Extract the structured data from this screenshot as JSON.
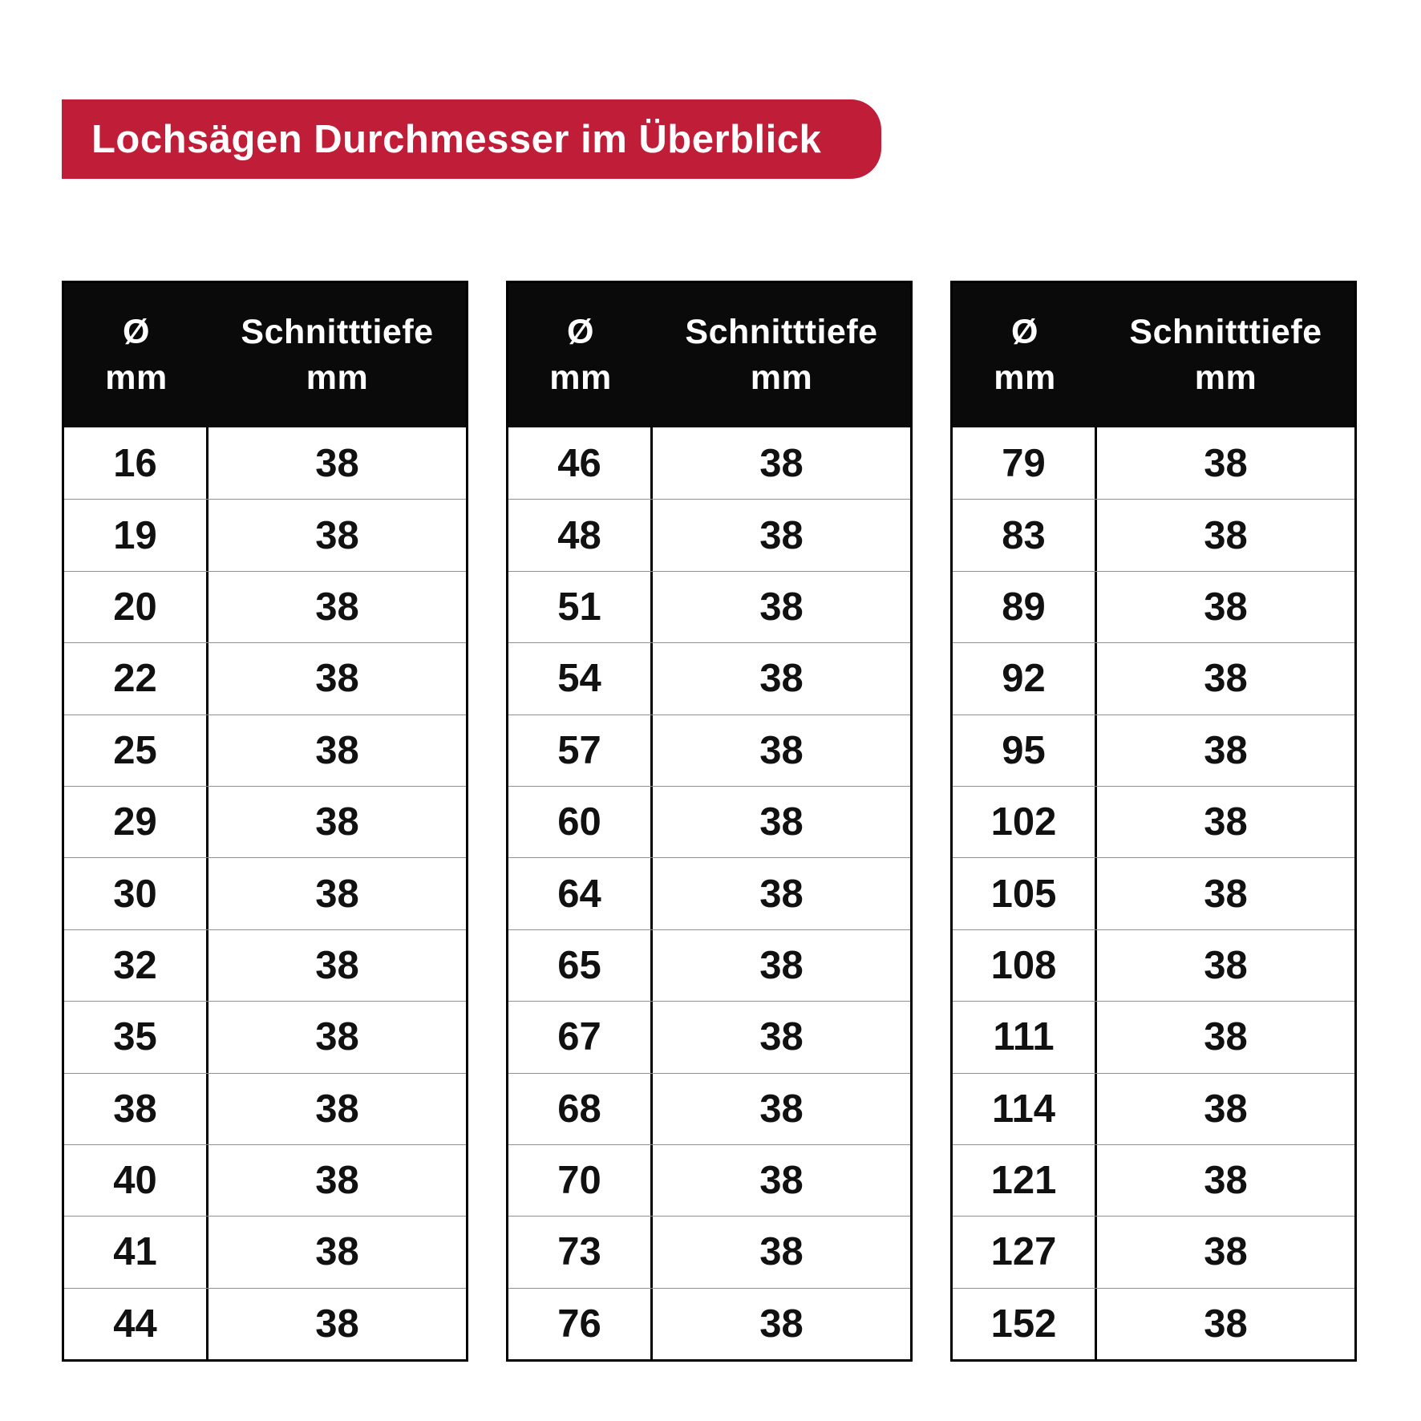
{
  "badge": {
    "title": "Lochsägen Durchmesser im Überblick"
  },
  "column_headers": {
    "col1_line1": "Ø",
    "col1_line2": "mm",
    "col2_line1": "Schnitttiefe",
    "col2_line2": "mm"
  },
  "colors": {
    "badge_red": "#c01d39",
    "header_bg": "#0a0a0a",
    "table_border": "#000000",
    "row_divider": "#8f8f8f",
    "text": "#111111"
  },
  "chart_data": {
    "type": "table",
    "title": "Lochsägen Durchmesser im Überblick",
    "columns": [
      "Ø mm",
      "Schnitttiefe mm"
    ],
    "tables": [
      {
        "rows": [
          [
            16,
            38
          ],
          [
            19,
            38
          ],
          [
            20,
            38
          ],
          [
            22,
            38
          ],
          [
            25,
            38
          ],
          [
            29,
            38
          ],
          [
            30,
            38
          ],
          [
            32,
            38
          ],
          [
            35,
            38
          ],
          [
            38,
            38
          ],
          [
            40,
            38
          ],
          [
            41,
            38
          ],
          [
            44,
            38
          ]
        ]
      },
      {
        "rows": [
          [
            46,
            38
          ],
          [
            48,
            38
          ],
          [
            51,
            38
          ],
          [
            54,
            38
          ],
          [
            57,
            38
          ],
          [
            60,
            38
          ],
          [
            64,
            38
          ],
          [
            65,
            38
          ],
          [
            67,
            38
          ],
          [
            68,
            38
          ],
          [
            70,
            38
          ],
          [
            73,
            38
          ],
          [
            76,
            38
          ]
        ]
      },
      {
        "rows": [
          [
            79,
            38
          ],
          [
            83,
            38
          ],
          [
            89,
            38
          ],
          [
            92,
            38
          ],
          [
            95,
            38
          ],
          [
            102,
            38
          ],
          [
            105,
            38
          ],
          [
            108,
            38
          ],
          [
            111,
            38
          ],
          [
            114,
            38
          ],
          [
            121,
            38
          ],
          [
            127,
            38
          ],
          [
            152,
            38
          ]
        ]
      }
    ]
  }
}
